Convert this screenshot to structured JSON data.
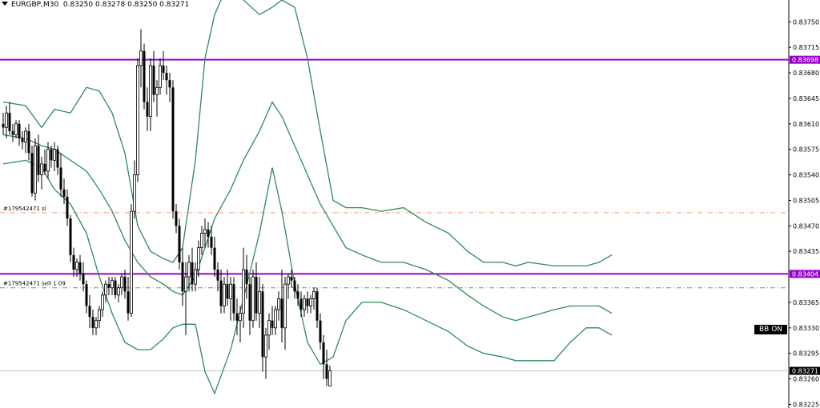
{
  "header": {
    "symbol_text": "EURGBP,M30",
    "ohlc_text": "0.83250 0.83278 0.83250 0.83271"
  },
  "bb_button": {
    "label": "BB ON"
  },
  "colors": {
    "background": "#ffffff",
    "candle": "#000000",
    "bands": "#2e8b57",
    "hline": "#9900cc",
    "sl_line": "#f2a07b",
    "entry_line": "#4caf50",
    "price_line": "#c8c8c8"
  },
  "chart_data": {
    "type": "candlestick",
    "symbol": "EURGBP",
    "timeframe": "M30",
    "ylim": [
      0.8322,
      0.8378
    ],
    "y_ticks": [
      "0.83750",
      "0.83715",
      "0.83680",
      "0.83645",
      "0.83610",
      "0.83575",
      "0.83540",
      "0.83505",
      "0.83470",
      "0.83435",
      "0.83365",
      "0.83330",
      "0.83295",
      "0.83260",
      "0.83225"
    ],
    "candles": [
      [
        0.8361,
        0.83625,
        0.83595,
        0.83605
      ],
      [
        0.83605,
        0.83635,
        0.8359,
        0.83625
      ],
      [
        0.83625,
        0.8364,
        0.83595,
        0.836
      ],
      [
        0.836,
        0.8361,
        0.83585,
        0.83595
      ],
      [
        0.83595,
        0.83615,
        0.8359,
        0.8361
      ],
      [
        0.8361,
        0.83615,
        0.8358,
        0.8359
      ],
      [
        0.8359,
        0.836,
        0.83575,
        0.83585
      ],
      [
        0.83585,
        0.83605,
        0.8357,
        0.836
      ],
      [
        0.836,
        0.8361,
        0.8356,
        0.8357
      ],
      [
        0.8357,
        0.8358,
        0.8351,
        0.83515
      ],
      [
        0.83515,
        0.8359,
        0.83505,
        0.8358
      ],
      [
        0.8358,
        0.83595,
        0.8353,
        0.8354
      ],
      [
        0.8354,
        0.83565,
        0.8352,
        0.83555
      ],
      [
        0.83555,
        0.83575,
        0.8354,
        0.83545
      ],
      [
        0.83545,
        0.83585,
        0.83535,
        0.83575
      ],
      [
        0.83575,
        0.8358,
        0.8355,
        0.8356
      ],
      [
        0.8356,
        0.83585,
        0.83545,
        0.83575
      ],
      [
        0.83575,
        0.8358,
        0.8354,
        0.8355
      ],
      [
        0.8355,
        0.8357,
        0.8351,
        0.8352
      ],
      [
        0.8352,
        0.83535,
        0.835,
        0.8351
      ],
      [
        0.8351,
        0.8352,
        0.8347,
        0.8348
      ],
      [
        0.8348,
        0.83485,
        0.8342,
        0.8343
      ],
      [
        0.8343,
        0.8344,
        0.834,
        0.8341
      ],
      [
        0.8341,
        0.83425,
        0.834,
        0.8342
      ],
      [
        0.8342,
        0.8343,
        0.83395,
        0.83405
      ],
      [
        0.83405,
        0.8342,
        0.8338,
        0.8339
      ],
      [
        0.8339,
        0.83395,
        0.8335,
        0.8336
      ],
      [
        0.8336,
        0.83375,
        0.8333,
        0.83345
      ],
      [
        0.83345,
        0.83355,
        0.8332,
        0.8333
      ],
      [
        0.8333,
        0.83345,
        0.8332,
        0.8334
      ],
      [
        0.8334,
        0.8336,
        0.8333,
        0.83355
      ],
      [
        0.83355,
        0.8338,
        0.83345,
        0.83375
      ],
      [
        0.83375,
        0.83395,
        0.83365,
        0.8339
      ],
      [
        0.8339,
        0.834,
        0.83375,
        0.83385
      ],
      [
        0.83385,
        0.834,
        0.83375,
        0.83395
      ],
      [
        0.83395,
        0.834,
        0.8337,
        0.83375
      ],
      [
        0.83375,
        0.8339,
        0.83365,
        0.83385
      ],
      [
        0.83385,
        0.83405,
        0.83375,
        0.834
      ],
      [
        0.834,
        0.8341,
        0.8337,
        0.8338
      ],
      [
        0.8338,
        0.834,
        0.8334,
        0.8335
      ],
      [
        0.8335,
        0.835,
        0.83345,
        0.8349
      ],
      [
        0.8349,
        0.8356,
        0.8348,
        0.8354
      ],
      [
        0.8354,
        0.837,
        0.8353,
        0.8369
      ],
      [
        0.8369,
        0.8374,
        0.8366,
        0.8371
      ],
      [
        0.8371,
        0.8372,
        0.8363,
        0.8364
      ],
      [
        0.8364,
        0.8366,
        0.836,
        0.8362
      ],
      [
        0.8362,
        0.837,
        0.836,
        0.8369
      ],
      [
        0.8369,
        0.8371,
        0.8364,
        0.8365
      ],
      [
        0.8365,
        0.8367,
        0.8362,
        0.8366
      ],
      [
        0.8366,
        0.837,
        0.8365,
        0.8369
      ],
      [
        0.8369,
        0.8371,
        0.8367,
        0.8368
      ],
      [
        0.8368,
        0.8369,
        0.8365,
        0.8367
      ],
      [
        0.8367,
        0.8368,
        0.8364,
        0.8366
      ],
      [
        0.8366,
        0.8367,
        0.8348,
        0.8349
      ],
      [
        0.8349,
        0.835,
        0.8346,
        0.8347
      ],
      [
        0.8347,
        0.8348,
        0.8341,
        0.8342
      ],
      [
        0.8342,
        0.8344,
        0.8336,
        0.8338
      ],
      [
        0.8338,
        0.8342,
        0.8332,
        0.834
      ],
      [
        0.834,
        0.8343,
        0.8338,
        0.8342
      ],
      [
        0.8342,
        0.8344,
        0.8338,
        0.8339
      ],
      [
        0.8339,
        0.8342,
        0.8338,
        0.8341
      ],
      [
        0.8341,
        0.8345,
        0.834,
        0.8344
      ],
      [
        0.8344,
        0.8347,
        0.8343,
        0.8346
      ],
      [
        0.8346,
        0.8348,
        0.8344,
        0.83465
      ],
      [
        0.83465,
        0.83475,
        0.8344,
        0.83455
      ],
      [
        0.83455,
        0.8347,
        0.8343,
        0.8344
      ],
      [
        0.8344,
        0.83455,
        0.834,
        0.8341
      ],
      [
        0.8341,
        0.8342,
        0.8338,
        0.83395
      ],
      [
        0.83395,
        0.8341,
        0.8335,
        0.8336
      ],
      [
        0.8336,
        0.834,
        0.8335,
        0.8339
      ],
      [
        0.8339,
        0.8341,
        0.8336,
        0.8337
      ],
      [
        0.8337,
        0.834,
        0.8334,
        0.8339
      ],
      [
        0.8339,
        0.834,
        0.8334,
        0.8335
      ],
      [
        0.8335,
        0.8337,
        0.8332,
        0.8334
      ],
      [
        0.8334,
        0.8336,
        0.8331,
        0.8335
      ],
      [
        0.8335,
        0.8344,
        0.8333,
        0.8341
      ],
      [
        0.8341,
        0.8343,
        0.8337,
        0.8339
      ],
      [
        0.8339,
        0.834,
        0.8332,
        0.8334
      ],
      [
        0.8334,
        0.8341,
        0.8333,
        0.834
      ],
      [
        0.834,
        0.8342,
        0.8334,
        0.8335
      ],
      [
        0.8335,
        0.834,
        0.8333,
        0.8338
      ],
      [
        0.8338,
        0.8339,
        0.8327,
        0.8329
      ],
      [
        0.8329,
        0.8333,
        0.8326,
        0.8332
      ],
      [
        0.8332,
        0.8335,
        0.833,
        0.8334
      ],
      [
        0.8334,
        0.8336,
        0.8332,
        0.8333
      ],
      [
        0.8333,
        0.8336,
        0.8332,
        0.83355
      ],
      [
        0.83355,
        0.8338,
        0.8334,
        0.8337
      ],
      [
        0.8337,
        0.8341,
        0.8331,
        0.8333
      ],
      [
        0.8333,
        0.834,
        0.833,
        0.8339
      ],
      [
        0.8339,
        0.83405,
        0.8337,
        0.834
      ],
      [
        0.834,
        0.8341,
        0.83385,
        0.83395
      ],
      [
        0.83395,
        0.834,
        0.8337,
        0.8338
      ],
      [
        0.8338,
        0.8339,
        0.8336,
        0.8337
      ],
      [
        0.8337,
        0.8338,
        0.83345,
        0.83355
      ],
      [
        0.83355,
        0.83375,
        0.83345,
        0.8337
      ],
      [
        0.8337,
        0.8338,
        0.8335,
        0.8336
      ],
      [
        0.8336,
        0.83375,
        0.8335,
        0.8337
      ],
      [
        0.8337,
        0.83385,
        0.83355,
        0.8338
      ],
      [
        0.8338,
        0.83385,
        0.8333,
        0.8334
      ],
      [
        0.8334,
        0.8335,
        0.833,
        0.8331
      ],
      [
        0.8331,
        0.8332,
        0.8326,
        0.8328
      ],
      [
        0.8328,
        0.833,
        0.8325,
        0.8326
      ],
      [
        0.8325,
        0.83278,
        0.8325,
        0.83271
      ]
    ],
    "bollinger": {
      "upper": [
        [
          0,
          0.8364
        ],
        [
          7,
          0.83635
        ],
        [
          12,
          0.83605
        ],
        [
          16,
          0.8363
        ],
        [
          21,
          0.83625
        ],
        [
          26,
          0.8366
        ],
        [
          30,
          0.83655
        ],
        [
          34,
          0.83625
        ],
        [
          38,
          0.8357
        ],
        [
          42,
          0.8347
        ],
        [
          46,
          0.83435
        ],
        [
          50,
          0.83425
        ],
        [
          53,
          0.8342
        ],
        [
          56,
          0.8344
        ],
        [
          60,
          0.8356
        ],
        [
          63,
          0.837
        ],
        [
          66,
          0.8376
        ],
        [
          71,
          0.8381
        ],
        [
          75,
          0.8378
        ],
        [
          80,
          0.8376
        ],
        [
          84,
          0.8377
        ],
        [
          87,
          0.8378
        ],
        [
          91,
          0.8377
        ],
        [
          95,
          0.837
        ],
        [
          99,
          0.836
        ],
        [
          103,
          0.83505
        ],
        [
          107,
          0.83495
        ],
        [
          112,
          0.83495
        ],
        [
          118,
          0.8349
        ],
        [
          125,
          0.83495
        ],
        [
          132,
          0.83475
        ],
        [
          139,
          0.8346
        ],
        [
          145,
          0.83435
        ],
        [
          150,
          0.8342
        ],
        [
          156,
          0.8342
        ],
        [
          160,
          0.83415
        ],
        [
          164,
          0.8342
        ],
        [
          172,
          0.83415
        ],
        [
          177,
          0.83415
        ],
        [
          182,
          0.83415
        ],
        [
          186,
          0.8342
        ],
        [
          190,
          0.8343
        ]
      ],
      "middle": [
        [
          0,
          0.83595
        ],
        [
          7,
          0.8359
        ],
        [
          12,
          0.8358
        ],
        [
          16,
          0.83575
        ],
        [
          21,
          0.8356
        ],
        [
          26,
          0.83545
        ],
        [
          30,
          0.8352
        ],
        [
          34,
          0.8349
        ],
        [
          38,
          0.8345
        ],
        [
          42,
          0.8342
        ],
        [
          46,
          0.834
        ],
        [
          50,
          0.8339
        ],
        [
          53,
          0.8338
        ],
        [
          56,
          0.83375
        ],
        [
          60,
          0.834
        ],
        [
          63,
          0.8344
        ],
        [
          66,
          0.8348
        ],
        [
          71,
          0.8352
        ],
        [
          75,
          0.8356
        ],
        [
          80,
          0.836
        ],
        [
          84,
          0.8364
        ],
        [
          87,
          0.8362
        ],
        [
          91,
          0.8358
        ],
        [
          95,
          0.8354
        ],
        [
          99,
          0.835
        ],
        [
          103,
          0.8347
        ],
        [
          107,
          0.8344
        ],
        [
          112,
          0.8343
        ],
        [
          118,
          0.8342
        ],
        [
          125,
          0.8342
        ],
        [
          132,
          0.8341
        ],
        [
          139,
          0.83395
        ],
        [
          145,
          0.83375
        ],
        [
          150,
          0.8336
        ],
        [
          156,
          0.83345
        ],
        [
          160,
          0.8334
        ],
        [
          164,
          0.83345
        ],
        [
          172,
          0.83355
        ],
        [
          177,
          0.8336
        ],
        [
          182,
          0.8336
        ],
        [
          186,
          0.8336
        ],
        [
          190,
          0.8335
        ]
      ],
      "lower": [
        [
          0,
          0.83555
        ],
        [
          7,
          0.8356
        ],
        [
          12,
          0.8355
        ],
        [
          16,
          0.8352
        ],
        [
          21,
          0.835
        ],
        [
          26,
          0.8346
        ],
        [
          30,
          0.834
        ],
        [
          34,
          0.8335
        ],
        [
          38,
          0.8331
        ],
        [
          42,
          0.833
        ],
        [
          46,
          0.833
        ],
        [
          50,
          0.83315
        ],
        [
          53,
          0.8333
        ],
        [
          56,
          0.83335
        ],
        [
          60,
          0.83335
        ],
        [
          63,
          0.8327
        ],
        [
          66,
          0.8324
        ],
        [
          71,
          0.833
        ],
        [
          75,
          0.8337
        ],
        [
          80,
          0.8346
        ],
        [
          84,
          0.8355
        ],
        [
          87,
          0.8349
        ],
        [
          91,
          0.8339
        ],
        [
          95,
          0.8331
        ],
        [
          99,
          0.8328
        ],
        [
          103,
          0.8329
        ],
        [
          107,
          0.8334
        ],
        [
          112,
          0.83365
        ],
        [
          118,
          0.83365
        ],
        [
          125,
          0.83355
        ],
        [
          132,
          0.8334
        ],
        [
          139,
          0.83325
        ],
        [
          145,
          0.83305
        ],
        [
          150,
          0.83295
        ],
        [
          156,
          0.8329
        ],
        [
          160,
          0.83285
        ],
        [
          164,
          0.83285
        ],
        [
          172,
          0.83285
        ],
        [
          177,
          0.8331
        ],
        [
          182,
          0.8333
        ],
        [
          186,
          0.8333
        ],
        [
          190,
          0.8332
        ]
      ]
    },
    "levels": [
      {
        "price": 0.83698,
        "label": "0.83698",
        "style": "solid-magenta"
      },
      {
        "price": 0.83404,
        "label": "0.83404",
        "style": "solid-magenta"
      },
      {
        "price": 0.83488,
        "label": "#179542471 sl",
        "style": "dashdot-orange"
      },
      {
        "price": 0.83385,
        "label": "#179542471 sell 1.09",
        "style": "dashdot-green"
      },
      {
        "price": 0.83271,
        "label": "0.83271",
        "style": "price-line"
      }
    ]
  }
}
